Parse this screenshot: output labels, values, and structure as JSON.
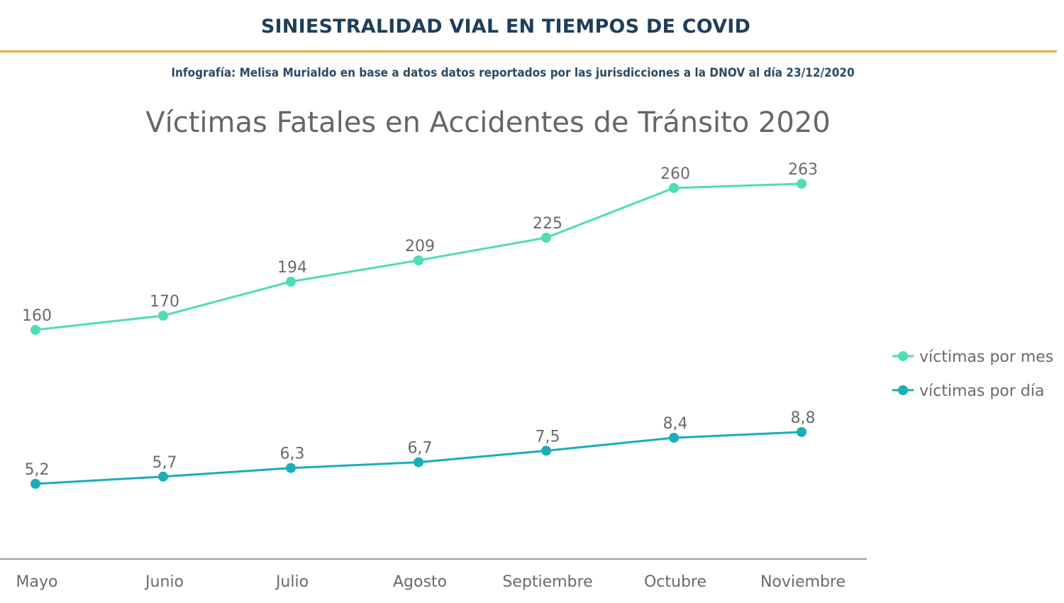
{
  "header": {
    "title": "SINIESTRALIDAD VIAL EN TIEMPOS DE COVID",
    "credit": "Infografía: Melisa Murialdo en base a datos datos reportados por las jurisdicciones a la DNOV al día 23/12/2020",
    "rule_color": "#f0a637"
  },
  "chart_data": {
    "type": "line",
    "title": "Víctimas Fatales en Accidentes de Tránsito 2020",
    "categories": [
      "Mayo",
      "Junio",
      "Julio",
      "Agosto",
      "Septiembre",
      "Octubre",
      "Noviembre"
    ],
    "series": [
      {
        "name": "víctimas por mes",
        "values": [
          160,
          170,
          194,
          209,
          225,
          260,
          263
        ],
        "labels": [
          "160",
          "170",
          "194",
          "209",
          "225",
          "260",
          "263"
        ],
        "color": "#4fdcb6"
      },
      {
        "name": "víctimas por día",
        "values": [
          5.2,
          5.7,
          6.3,
          6.7,
          7.5,
          8.4,
          8.8
        ],
        "labels": [
          "5,2",
          "5,7",
          "6,3",
          "6,7",
          "7,5",
          "8,4",
          "8,8"
        ],
        "color": "#1aaeb8"
      }
    ],
    "legend_position": "right",
    "grid": false
  }
}
